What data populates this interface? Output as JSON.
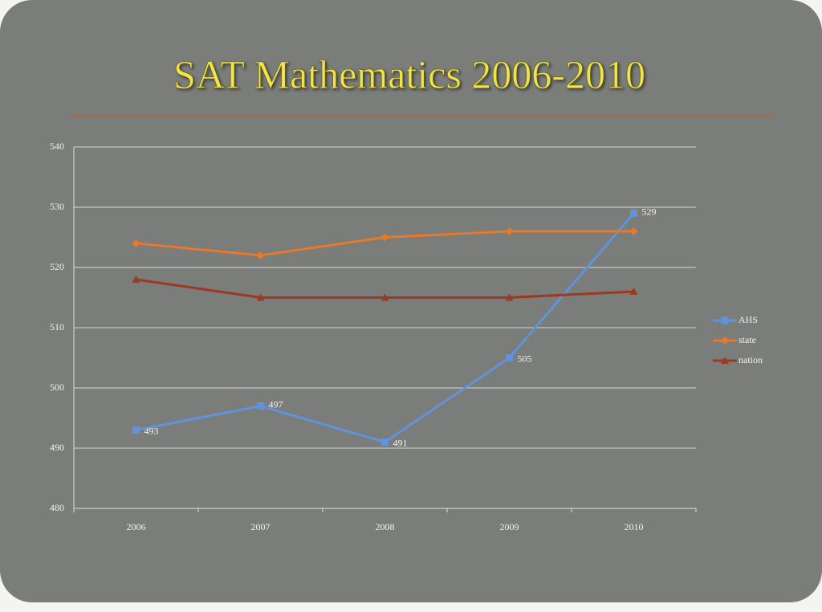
{
  "chart_data": {
    "type": "line",
    "title": "SAT Mathematics 2006-2010",
    "categories": [
      "2006",
      "2007",
      "2008",
      "2009",
      "2010"
    ],
    "series": [
      {
        "name": "AHS",
        "color": "#5f93dc",
        "marker": "square",
        "data_labels": true,
        "values": [
          493,
          497,
          491,
          505,
          529
        ]
      },
      {
        "name": "state",
        "color": "#e8782a",
        "marker": "diamond",
        "data_labels": false,
        "values": [
          524,
          522,
          525,
          526,
          526
        ]
      },
      {
        "name": "nation",
        "color": "#9a3a20",
        "marker": "triangle",
        "data_labels": false,
        "values": [
          518,
          515,
          515,
          515,
          516
        ]
      }
    ],
    "ylim": [
      480,
      540
    ],
    "yticks": [
      480,
      490,
      500,
      510,
      520,
      530,
      540
    ],
    "grid": true,
    "legend": "right"
  }
}
